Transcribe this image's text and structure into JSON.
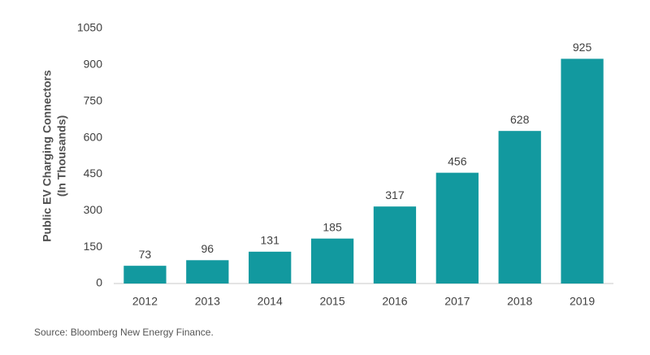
{
  "chart_data": {
    "type": "bar",
    "y_label": [
      "Public EV Charging Connectors",
      "(In Thousands)"
    ],
    "categories": [
      "2012",
      "2013",
      "2014",
      "2015",
      "2016",
      "2017",
      "2018",
      "2019"
    ],
    "values": [
      73,
      96,
      131,
      185,
      317,
      456,
      628,
      925
    ],
    "color": "#12999f",
    "ylim": [
      0,
      1050
    ],
    "yticks": [
      0,
      150,
      300,
      450,
      600,
      750,
      900,
      1050
    ],
    "grid": false,
    "source": "Source: Bloomberg New Energy Finance."
  }
}
